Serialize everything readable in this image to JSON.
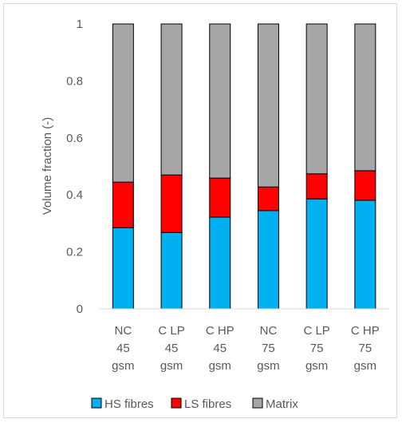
{
  "chart_data": {
    "type": "bar",
    "stacked": true,
    "title": "",
    "xlabel": "",
    "ylabel": "Volume fraction (-)",
    "ylim": [
      0,
      1
    ],
    "yticks": [
      "0",
      "0.2",
      "0.4",
      "0.6",
      "0.8",
      "1"
    ],
    "grid": false,
    "legend_position": "bottom",
    "categories": [
      [
        "NC",
        "45",
        "gsm"
      ],
      [
        "C LP",
        "45",
        "gsm"
      ],
      [
        "C HP",
        "45",
        "gsm"
      ],
      [
        "NC",
        "75",
        "gsm"
      ],
      [
        "C LP",
        "75",
        "gsm"
      ],
      [
        "C HP",
        "75",
        "gsm"
      ]
    ],
    "series": [
      {
        "name": "HS fibres",
        "color": "#00b0f0",
        "values": [
          0.285,
          0.268,
          0.322,
          0.345,
          0.386,
          0.381
        ]
      },
      {
        "name": "LS fibres",
        "color": "#ff0000",
        "values": [
          0.16,
          0.202,
          0.137,
          0.083,
          0.088,
          0.104
        ]
      },
      {
        "name": "Matrix",
        "color": "#a6a6a6",
        "values": [
          0.555,
          0.53,
          0.541,
          0.572,
          0.526,
          0.515
        ]
      }
    ]
  }
}
